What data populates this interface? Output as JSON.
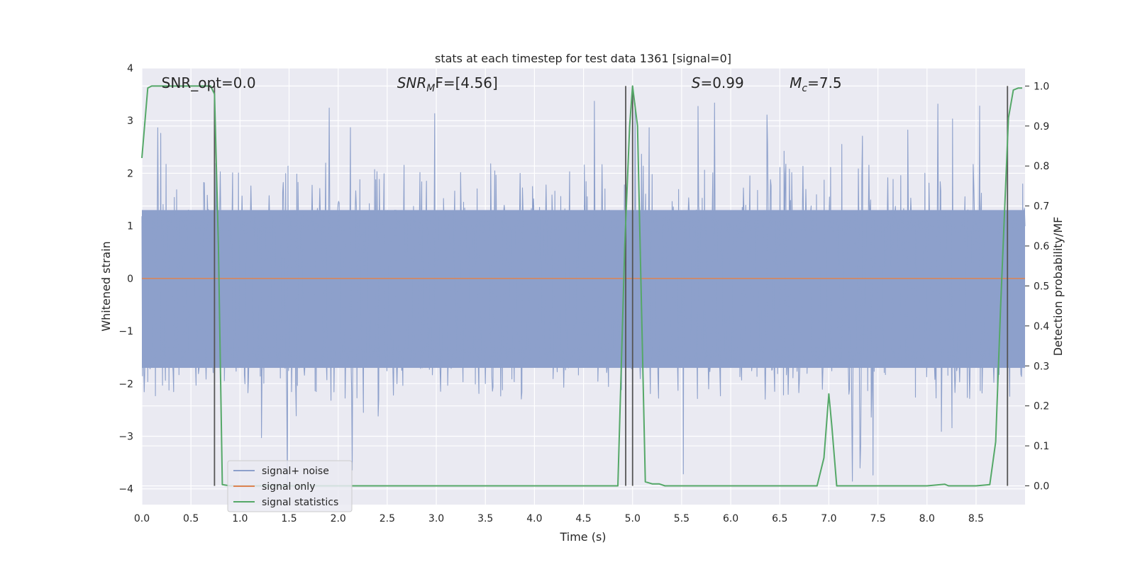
{
  "chart_data": {
    "type": "line",
    "title": "stats at each timestep for test data 1361 [signal=0]",
    "xlabel": "Time (s)",
    "ylabel_left": "Whitened strain",
    "ylabel_right": "Detection probability/MF",
    "xlim": [
      0,
      8.999
    ],
    "ylim_left": [
      -4.3,
      4.0
    ],
    "ylim_right": [
      -0.047,
      1.045
    ],
    "x_ticks": [
      0.0,
      0.5,
      1.0,
      1.5,
      2.0,
      2.5,
      3.0,
      3.5,
      4.0,
      4.5,
      5.0,
      5.5,
      6.0,
      6.5,
      7.0,
      7.5,
      8.0,
      8.5
    ],
    "x_tick_labels": [
      "0.0",
      "0.5",
      "1.0",
      "1.5",
      "2.0",
      "2.5",
      "3.0",
      "3.5",
      "4.0",
      "4.5",
      "5.0",
      "5.5",
      "6.0",
      "6.5",
      "7.0",
      "7.5",
      "8.0",
      "8.5"
    ],
    "y_left_ticks": [
      4,
      3,
      2,
      1,
      0,
      -1,
      -2,
      -3,
      -4
    ],
    "y_left_tick_labels": [
      "4",
      "3",
      "2",
      "1",
      "0",
      "−1",
      "−2",
      "−3",
      "−4"
    ],
    "y_right_ticks": [
      1.0,
      0.9,
      0.8,
      0.7,
      0.6,
      0.5,
      0.4,
      0.3,
      0.2,
      0.1,
      0.0
    ],
    "y_right_tick_labels": [
      "1.0",
      "0.9",
      "0.8",
      "0.7",
      "0.6",
      "0.5",
      "0.4",
      "0.3",
      "0.2",
      "0.1",
      "0.0"
    ],
    "grid": true,
    "legend_placement": "lower-left",
    "colors": {
      "noise": "#8da0cb",
      "signal": "#dd8452",
      "stats": "#55a868",
      "vlines": "#555555",
      "background": "#eaeaf2",
      "grid": "#ffffff"
    },
    "series": [
      {
        "name": "signal+ noise",
        "axis": "left",
        "description_note": "",
        "noise_envelope": {
          "core_min": -1.7,
          "core_max": 1.3,
          "spike_range": [
            -4.0,
            3.6
          ]
        }
      },
      {
        "name": "signal only",
        "axis": "left",
        "x": [
          0.0,
          8.999
        ],
        "y": [
          0.0,
          0.0
        ]
      },
      {
        "name": "signal statistics",
        "axis": "right",
        "x": [
          0.0,
          0.06,
          0.1,
          0.15,
          0.2,
          0.3,
          0.4,
          0.5,
          0.6,
          0.7,
          0.74,
          0.78,
          0.82,
          0.9,
          1.0,
          2.0,
          3.0,
          4.0,
          4.5,
          4.85,
          4.92,
          4.97,
          5.0,
          5.05,
          5.13,
          5.2,
          5.27,
          5.33,
          6.0,
          6.5,
          6.88,
          6.95,
          7.0,
          7.03,
          7.08,
          7.5,
          8.0,
          8.18,
          8.22,
          8.5,
          8.64,
          8.7,
          8.75,
          8.83,
          8.88,
          8.93,
          8.97
        ],
        "y": [
          0.82,
          0.995,
          1.0,
          1.0,
          1.0,
          1.0,
          1.0,
          1.0,
          1.0,
          1.0,
          0.98,
          0.6,
          0.003,
          0.0,
          0.0,
          0.0,
          0.0,
          0.0,
          0.0,
          0.0,
          0.6,
          0.9,
          1.0,
          0.9,
          0.01,
          0.005,
          0.005,
          0.0,
          0.0,
          0.0,
          0.0,
          0.07,
          0.23,
          0.15,
          0.0,
          0.0,
          0.0,
          0.004,
          0.0,
          0.0,
          0.003,
          0.11,
          0.45,
          0.92,
          0.99,
          0.995,
          0.995
        ]
      }
    ],
    "vlines_x": [
      0.74,
      4.93,
      5.0,
      8.82
    ],
    "annotations": [
      {
        "text": "SNR_opt=0.0",
        "x": 0.2
      },
      {
        "text_main": "SNR",
        "text_sub": "M",
        "text_rest": "F=[4.56]",
        "x": 2.6
      },
      {
        "text_main": "S",
        "text_sub": "",
        "text_rest": "=0.99",
        "x": 5.6
      },
      {
        "text_main": "M",
        "text_sub": "c",
        "text_rest": "=7.5",
        "x": 6.6
      }
    ]
  }
}
